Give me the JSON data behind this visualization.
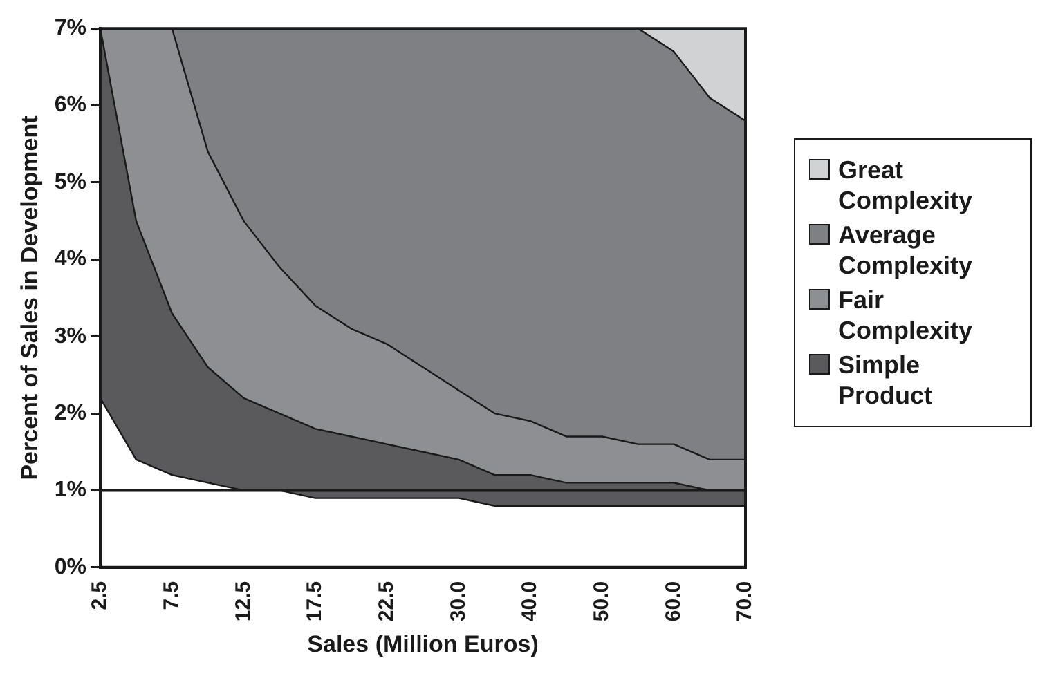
{
  "chart_data": {
    "type": "area",
    "stacked": true,
    "xlabel": "Sales (Million Euros)",
    "ylabel": "Percent of Sales in Development",
    "categories": [
      "2.5",
      null,
      "7.5",
      null,
      "12.5",
      null,
      "17.5",
      null,
      "22.5",
      null,
      "30.0",
      null,
      "40.0",
      null,
      "50.0",
      null,
      "60.0",
      null,
      "70.0"
    ],
    "ylim": [
      0,
      7
    ],
    "yticks": [
      {
        "value": 0,
        "label": "0%"
      },
      {
        "value": 1,
        "label": "1%"
      },
      {
        "value": 2,
        "label": "2%"
      },
      {
        "value": 3,
        "label": "3%"
      },
      {
        "value": 4,
        "label": "4%"
      },
      {
        "value": 5,
        "label": "5%"
      },
      {
        "value": 6,
        "label": "6%"
      },
      {
        "value": 7,
        "label": "7%"
      }
    ],
    "grid": false,
    "legend": "right",
    "marker": "none",
    "ref_lines": [
      {
        "axis": "y",
        "value": 1,
        "color": "#1a1a1a"
      }
    ],
    "series": [
      {
        "color": "#ffffff",
        "values": [
          2.2,
          1.4,
          1.2,
          1.1,
          1.0,
          1.0,
          0.9,
          0.9,
          0.9,
          0.9,
          0.9,
          0.8,
          0.8,
          0.8,
          0.8,
          0.8,
          0.8,
          0.8,
          0.8
        ]
      },
      {
        "name": "Simple Product",
        "color": "#5a5a5c",
        "values": [
          4.8,
          3.1,
          2.1,
          1.5,
          1.2,
          1.0,
          0.9,
          0.8,
          0.7,
          0.6,
          0.5,
          0.4,
          0.4,
          0.3,
          0.3,
          0.3,
          0.3,
          0.2,
          0.2
        ]
      },
      {
        "name": "Fair Complexity",
        "color": "#8e8f93",
        "values": [
          0,
          2.5,
          3.7,
          2.8,
          2.3,
          1.9,
          1.6,
          1.4,
          1.3,
          1.1,
          0.9,
          0.8,
          0.7,
          0.6,
          0.6,
          0.5,
          0.5,
          0.4,
          0.4
        ]
      },
      {
        "name": "Average Complexity",
        "color": "#7f8084",
        "values": [
          0,
          0,
          0,
          1.6,
          2.5,
          3.1,
          3.6,
          3.9,
          4.1,
          4.4,
          4.7,
          5.0,
          5.1,
          5.3,
          5.3,
          5.4,
          5.1,
          4.7,
          4.4
        ]
      },
      {
        "name": "Great Complexity",
        "color": "#d1d2d4",
        "values": [
          0,
          0,
          0,
          0,
          0,
          0,
          0,
          0,
          0,
          0,
          0,
          0,
          0,
          0,
          0,
          0,
          0.3,
          0.9,
          1.2
        ]
      }
    ]
  }
}
